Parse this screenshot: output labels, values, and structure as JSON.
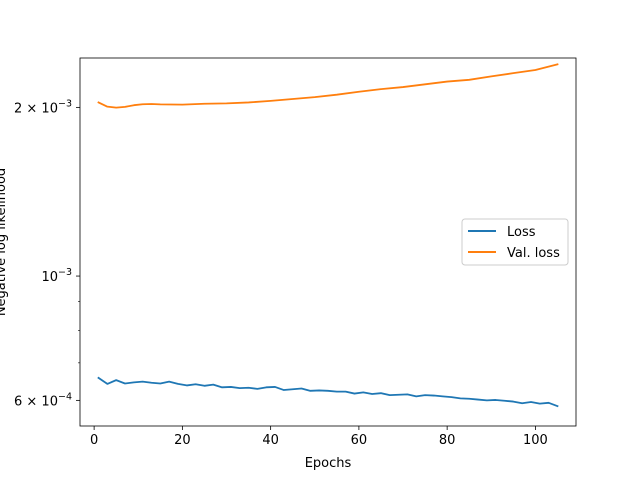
{
  "chart_data": {
    "type": "line",
    "xlabel": "Epochs",
    "ylabel": "Negative log likelihood",
    "xlim": [
      -3.2,
      109.2
    ],
    "ylim": [
      0.00054,
      0.00245
    ],
    "yscale": "log",
    "grid": false,
    "legend_position": "center-right",
    "x_ticks": [
      0,
      20,
      40,
      60,
      80,
      100
    ],
    "x_tick_labels": [
      "0",
      "20",
      "40",
      "60",
      "80",
      "100"
    ],
    "y_major_ticks": [
      0.002,
      0.001,
      0.0006
    ],
    "y_major_tick_labels": [
      {
        "base": "2 × 10",
        "exp": "−3"
      },
      {
        "base": "10",
        "exp": "−3"
      },
      {
        "base": "6 × 10",
        "exp": "−4"
      }
    ],
    "y_minor_ticks": [
      0.0007,
      0.0008,
      0.0009
    ],
    "series": [
      {
        "name": "Loss",
        "color": "#1f77b4",
        "x": [
          1,
          3,
          5,
          7,
          9,
          11,
          13,
          15,
          17,
          19,
          21,
          23,
          25,
          27,
          29,
          31,
          33,
          35,
          37,
          39,
          41,
          43,
          45,
          47,
          49,
          51,
          53,
          55,
          57,
          59,
          61,
          63,
          65,
          67,
          69,
          71,
          73,
          75,
          77,
          79,
          81,
          83,
          85,
          87,
          89,
          91,
          93,
          95,
          97,
          99,
          101,
          103,
          105
        ],
        "y": [
          0.000658,
          0.000642,
          0.000652,
          0.000643,
          0.000646,
          0.000648,
          0.000645,
          0.000643,
          0.000648,
          0.000642,
          0.000638,
          0.000641,
          0.000637,
          0.00064,
          0.000633,
          0.000634,
          0.000631,
          0.000632,
          0.000629,
          0.000633,
          0.000634,
          0.000626,
          0.000628,
          0.00063,
          0.000624,
          0.000625,
          0.000624,
          0.000622,
          0.000622,
          0.000617,
          0.00062,
          0.000616,
          0.000618,
          0.000613,
          0.000614,
          0.000615,
          0.00061,
          0.000613,
          0.000612,
          0.00061,
          0.000608,
          0.000605,
          0.000604,
          0.000602,
          0.0006,
          0.000601,
          0.000599,
          0.000597,
          0.000593,
          0.000596,
          0.000592,
          0.000594,
          0.000586
        ]
      },
      {
        "name": "Val. loss",
        "color": "#ff7f0e",
        "x": [
          1,
          3,
          5,
          7,
          9,
          11,
          13,
          15,
          20,
          25,
          30,
          35,
          40,
          45,
          50,
          55,
          60,
          65,
          70,
          75,
          80,
          85,
          90,
          95,
          100,
          105
        ],
        "y": [
          0.002041,
          0.002006,
          0.001998,
          0.002004,
          0.002018,
          0.002026,
          0.002028,
          0.002025,
          0.002023,
          0.00203,
          0.002033,
          0.002041,
          0.002054,
          0.00207,
          0.002086,
          0.002107,
          0.002133,
          0.002156,
          0.002174,
          0.002199,
          0.002224,
          0.00224,
          0.002272,
          0.002302,
          0.002332,
          0.002387
        ]
      }
    ]
  }
}
